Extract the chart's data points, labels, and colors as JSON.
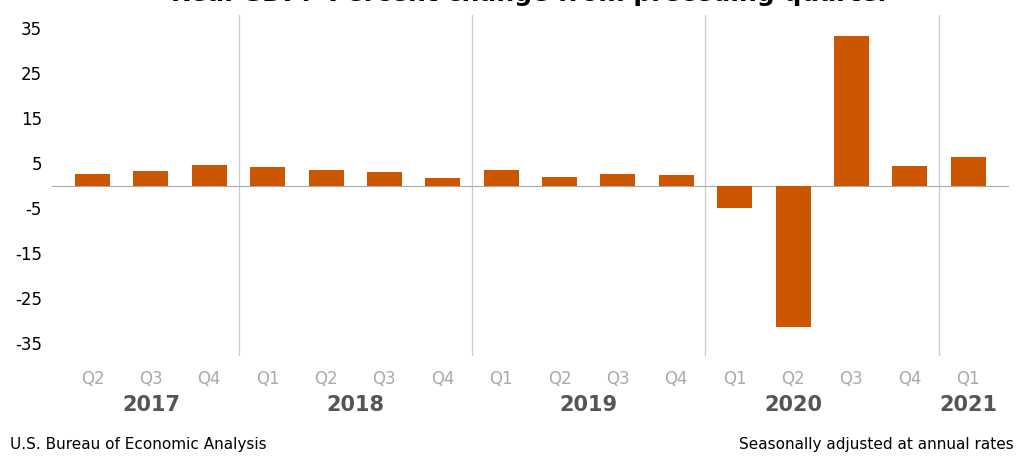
{
  "bar_color": "#CC5500",
  "background_color": "#ffffff",
  "footer_left": "U.S. Bureau of Economic Analysis",
  "footer_right": "Seasonally adjusted at annual rates",
  "quarter_labels": [
    "Q2",
    "Q3",
    "Q4",
    "Q1",
    "Q2",
    "Q3",
    "Q4",
    "Q1",
    "Q2",
    "Q3",
    "Q4",
    "Q1",
    "Q2",
    "Q3",
    "Q4",
    "Q1"
  ],
  "year_labels": [
    {
      "label": "2017",
      "x": 1.0
    },
    {
      "label": "2018",
      "x": 4.5
    },
    {
      "label": "2019",
      "x": 8.5
    },
    {
      "label": "2020",
      "x": 12.0
    },
    {
      "label": "2021",
      "x": 15.0
    }
  ],
  "year_dividers": [
    2.5,
    6.5,
    10.5,
    14.5
  ],
  "values": [
    2.7,
    3.2,
    4.6,
    4.2,
    3.5,
    3.0,
    1.8,
    3.5,
    2.0,
    2.7,
    2.4,
    -5.0,
    -31.4,
    33.4,
    4.5,
    6.3
  ],
  "ylim": [
    -38,
    38
  ],
  "yticks": [
    -35,
    -25,
    -15,
    -5,
    5,
    15,
    25,
    35
  ],
  "title_fontsize": 18,
  "quarter_tick_fontsize": 12,
  "year_tick_fontsize": 15,
  "footer_fontsize": 11,
  "zero_line_color": "#aaaaaa",
  "divider_color": "#cccccc",
  "quarter_label_color": "#aaaaaa",
  "year_label_color": "#555555"
}
